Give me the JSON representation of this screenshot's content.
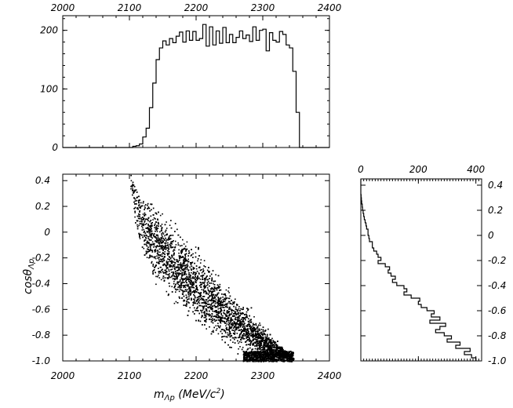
{
  "chart_data": [
    {
      "type": "histogram",
      "panel": "top",
      "x_ticks": [
        "2000",
        "2100",
        "2200",
        "2300",
        "2400"
      ],
      "y_ticks": [
        "0",
        "100",
        "200"
      ],
      "xlim": [
        2000,
        2400
      ],
      "ylim": [
        0,
        225
      ],
      "bin_edges": [
        2000,
        2005,
        2010,
        2015,
        2020,
        2025,
        2030,
        2035,
        2040,
        2045,
        2050,
        2055,
        2060,
        2065,
        2070,
        2075,
        2080,
        2085,
        2090,
        2095,
        2100,
        2105,
        2110,
        2115,
        2120,
        2125,
        2130,
        2135,
        2140,
        2145,
        2150,
        2155,
        2160,
        2165,
        2170,
        2175,
        2180,
        2185,
        2190,
        2195,
        2200,
        2205,
        2210,
        2215,
        2220,
        2225,
        2230,
        2235,
        2240,
        2245,
        2250,
        2255,
        2260,
        2265,
        2270,
        2275,
        2280,
        2285,
        2290,
        2295,
        2300,
        2305,
        2310,
        2315,
        2320,
        2325,
        2330,
        2335,
        2340,
        2345,
        2350,
        2355,
        2360,
        2365,
        2370,
        2375,
        2380,
        2385,
        2390,
        2395,
        2400
      ],
      "counts": [
        0,
        0,
        0,
        0,
        0,
        0,
        0,
        0,
        0,
        0,
        0,
        0,
        0,
        0,
        0,
        0,
        0,
        0,
        0,
        0,
        0,
        2,
        3,
        6,
        18,
        33,
        68,
        110,
        150,
        170,
        182,
        175,
        186,
        179,
        190,
        197,
        180,
        199,
        183,
        198,
        183,
        186,
        210,
        173,
        206,
        175,
        199,
        178,
        205,
        179,
        193,
        179,
        188,
        199,
        186,
        192,
        181,
        206,
        183,
        200,
        202,
        165,
        196,
        183,
        180,
        198,
        193,
        175,
        170,
        130,
        60,
        0,
        0,
        0,
        0,
        0,
        0,
        0,
        0,
        0
      ]
    },
    {
      "type": "scatter",
      "panel": "main",
      "xlabel": "m_{Λp} (MeV/c²)",
      "ylabel": "cosθ_{Λp}",
      "x_ticks": [
        "2000",
        "2100",
        "2200",
        "2300",
        "2400"
      ],
      "y_ticks": [
        "0.4",
        "0.2",
        "0",
        "-0.2",
        "-0.4",
        "-0.6",
        "-0.8",
        "-1.0"
      ],
      "xlim": [
        2000,
        2400
      ],
      "ylim": [
        -1.0,
        0.45
      ],
      "band": [
        {
          "x": 2100,
          "y_lo": 0.45,
          "y_hi": 0.45,
          "w": 0.06
        },
        {
          "x": 2110,
          "y_lo": -0.1,
          "y_hi": 0.4,
          "w": 0.5
        },
        {
          "x": 2130,
          "y_lo": -0.4,
          "y_hi": 0.35,
          "w": 0.95
        },
        {
          "x": 2150,
          "y_lo": -0.55,
          "y_hi": 0.25,
          "w": 1.0
        },
        {
          "x": 2170,
          "y_lo": -0.62,
          "y_hi": 0.12,
          "w": 1.0
        },
        {
          "x": 2190,
          "y_lo": -0.72,
          "y_hi": 0.0,
          "w": 1.0
        },
        {
          "x": 2210,
          "y_lo": -0.82,
          "y_hi": -0.12,
          "w": 1.0
        },
        {
          "x": 2230,
          "y_lo": -0.88,
          "y_hi": -0.25,
          "w": 1.0
        },
        {
          "x": 2250,
          "y_lo": -0.93,
          "y_hi": -0.38,
          "w": 1.0
        },
        {
          "x": 2270,
          "y_lo": -0.97,
          "y_hi": -0.5,
          "w": 1.0
        },
        {
          "x": 2290,
          "y_lo": -1.0,
          "y_hi": -0.62,
          "w": 1.0
        },
        {
          "x": 2310,
          "y_lo": -1.0,
          "y_hi": -0.76,
          "w": 1.0
        },
        {
          "x": 2330,
          "y_lo": -1.0,
          "y_hi": -0.88,
          "w": 0.85
        },
        {
          "x": 2345,
          "y_lo": -1.0,
          "y_hi": -0.96,
          "w": 0.4
        }
      ]
    },
    {
      "type": "histogram",
      "panel": "right",
      "orientation": "horizontal",
      "x_ticks": [
        "0",
        "200",
        "400"
      ],
      "y_ticks": [
        "0.4",
        "0.2",
        "0",
        "-0.2",
        "-0.4",
        "-0.6",
        "-0.8",
        "-1.0"
      ],
      "xlim": [
        0,
        420
      ],
      "ylim": [
        -1.0,
        0.45
      ],
      "bin_edges": [
        -1.0,
        -0.975,
        -0.95,
        -0.925,
        -0.9,
        -0.875,
        -0.85,
        -0.825,
        -0.8,
        -0.775,
        -0.75,
        -0.725,
        -0.7,
        -0.675,
        -0.65,
        -0.625,
        -0.6,
        -0.575,
        -0.55,
        -0.525,
        -0.5,
        -0.475,
        -0.45,
        -0.425,
        -0.4,
        -0.375,
        -0.35,
        -0.325,
        -0.3,
        -0.275,
        -0.25,
        -0.225,
        -0.2,
        -0.175,
        -0.15,
        -0.125,
        -0.1,
        -0.075,
        -0.05,
        -0.025,
        0.0,
        0.025,
        0.05,
        0.075,
        0.1,
        0.125,
        0.15,
        0.175,
        0.2,
        0.225,
        0.25,
        0.275,
        0.3,
        0.325,
        0.35,
        0.375,
        0.4,
        0.425,
        0.45
      ],
      "counts": [
        400,
        385,
        360,
        380,
        330,
        345,
        300,
        315,
        290,
        260,
        275,
        295,
        240,
        275,
        245,
        255,
        230,
        210,
        200,
        205,
        175,
        150,
        160,
        150,
        125,
        110,
        120,
        105,
        95,
        100,
        85,
        60,
        70,
        60,
        55,
        45,
        40,
        40,
        30,
        28,
        25,
        25,
        20,
        18,
        15,
        12,
        10,
        8,
        6,
        5,
        3,
        2,
        1,
        0,
        0,
        0,
        0,
        0
      ]
    }
  ]
}
